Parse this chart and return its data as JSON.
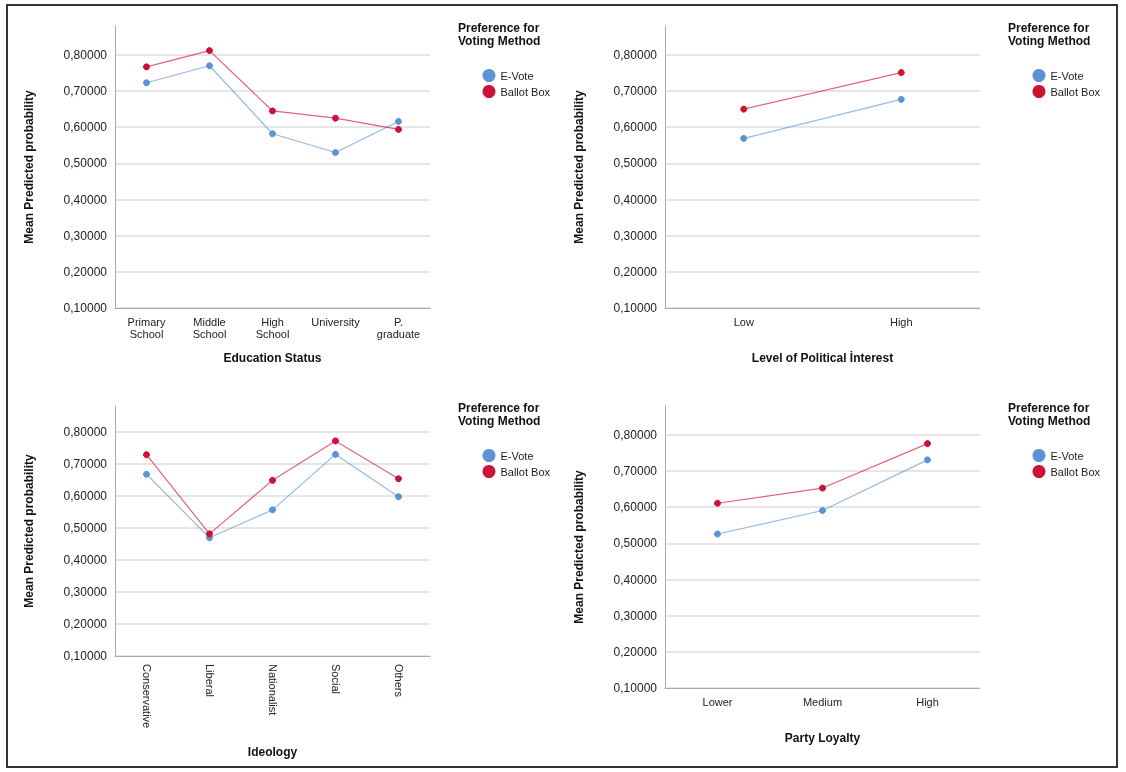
{
  "chart_data": [
    {
      "type": "line",
      "xlabel": "Education Status",
      "ylabel": "Mean Predicted probability",
      "legend_title": "Preference for Voting Method",
      "categories": [
        "Primary\nSchool",
        "Middle\nSchool",
        "High\nSchool",
        "University",
        "P.\ngraduate"
      ],
      "series": [
        {
          "name": "E-Vote",
          "color": "#5b93d6",
          "values": [
            0.723,
            0.77,
            0.582,
            0.53,
            0.616
          ]
        },
        {
          "name": "Ballot Box",
          "color": "#cc1236",
          "values": [
            0.767,
            0.812,
            0.645,
            0.625,
            0.594
          ]
        }
      ],
      "ylim": [
        0.1,
        0.88
      ],
      "yticks": [
        {
          "value": 0.1,
          "label": "0,10000"
        },
        {
          "value": 0.2,
          "label": "0,20000"
        },
        {
          "value": 0.3,
          "label": "0,30000"
        },
        {
          "value": 0.4,
          "label": "0,40000"
        },
        {
          "value": 0.5,
          "label": "0,50000"
        },
        {
          "value": 0.6,
          "label": "0,60000"
        },
        {
          "value": 0.7,
          "label": "0,70000"
        },
        {
          "value": 0.8,
          "label": "0,80000"
        }
      ],
      "grid": "y",
      "legend": "top right",
      "marker": "circle"
    },
    {
      "type": "line",
      "xlabel": "Level of Political İnterest",
      "ylabel": "Mean Predicted probability",
      "legend_title": "Preference for Voting Method",
      "categories": [
        "Low",
        "High"
      ],
      "series": [
        {
          "name": "E-Vote",
          "color": "#5b93d6",
          "values": [
            0.569,
            0.677
          ]
        },
        {
          "name": "Ballot Box",
          "color": "#cc1236",
          "values": [
            0.65,
            0.751
          ]
        }
      ],
      "ylim": [
        0.1,
        0.88
      ],
      "yticks": [
        {
          "value": 0.1,
          "label": "0,10000"
        },
        {
          "value": 0.2,
          "label": "0,20000"
        },
        {
          "value": 0.3,
          "label": "0,30000"
        },
        {
          "value": 0.4,
          "label": "0,40000"
        },
        {
          "value": 0.5,
          "label": "0,50000"
        },
        {
          "value": 0.6,
          "label": "0,60000"
        },
        {
          "value": 0.7,
          "label": "0,70000"
        },
        {
          "value": 0.8,
          "label": "0,80000"
        }
      ],
      "grid": "y",
      "legend": "top right",
      "marker": "circle"
    },
    {
      "type": "line",
      "xlabel": "Ideology",
      "ylabel": "Mean Predicted probability",
      "legend_title": "Preference for Voting Method",
      "categories": [
        "Conservative",
        "Liberal",
        "Nationalist",
        "Social",
        "Others"
      ],
      "series": [
        {
          "name": "E-Vote",
          "color": "#5b93d6",
          "values": [
            0.667,
            0.469,
            0.556,
            0.729,
            0.597
          ]
        },
        {
          "name": "Ballot Box",
          "color": "#cc1236",
          "values": [
            0.728,
            0.481,
            0.648,
            0.771,
            0.653
          ]
        }
      ],
      "ylim": [
        0.1,
        0.88
      ],
      "yticks": [
        {
          "value": 0.1,
          "label": "0,10000"
        },
        {
          "value": 0.2,
          "label": "0,20000"
        },
        {
          "value": 0.3,
          "label": "0,30000"
        },
        {
          "value": 0.4,
          "label": "0,40000"
        },
        {
          "value": 0.5,
          "label": "0,50000"
        },
        {
          "value": 0.6,
          "label": "0,60000"
        },
        {
          "value": 0.7,
          "label": "0,70000"
        },
        {
          "value": 0.8,
          "label": "0,80000"
        }
      ],
      "grid": "y",
      "legend": "top right",
      "marker": "circle"
    },
    {
      "type": "line",
      "xlabel": "Party Loyalty",
      "ylabel": "Mean Predicted probability",
      "legend_title": "Preference for Voting Method",
      "categories": [
        "Lower",
        "Medium",
        "High"
      ],
      "series": [
        {
          "name": "E-Vote",
          "color": "#5b93d6",
          "values": [
            0.526,
            0.591,
            0.731
          ]
        },
        {
          "name": "Ballot Box",
          "color": "#cc1236",
          "values": [
            0.611,
            0.653,
            0.776
          ]
        }
      ],
      "ylim": [
        0.1,
        0.88
      ],
      "yticks": [
        {
          "value": 0.1,
          "label": "0,10000"
        },
        {
          "value": 0.2,
          "label": "0,20000"
        },
        {
          "value": 0.3,
          "label": "0,30000"
        },
        {
          "value": 0.4,
          "label": "0,40000"
        },
        {
          "value": 0.5,
          "label": "0,50000"
        },
        {
          "value": 0.6,
          "label": "0,60000"
        },
        {
          "value": 0.7,
          "label": "0,70000"
        },
        {
          "value": 0.8,
          "label": "0,80000"
        }
      ],
      "grid": "y",
      "legend": "top right",
      "marker": "circle"
    }
  ]
}
